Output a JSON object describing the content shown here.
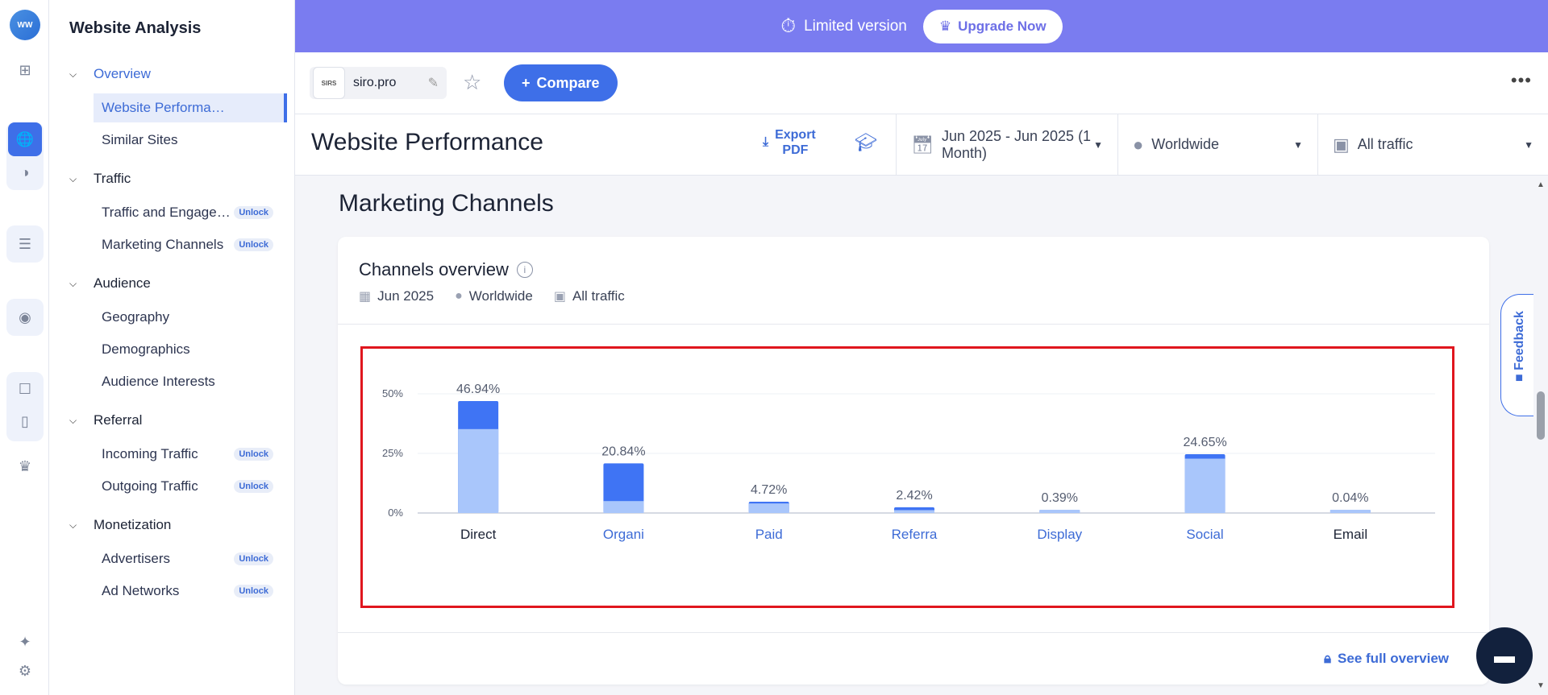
{
  "sidebar": {
    "title": "Website Analysis",
    "sections": [
      {
        "label": "Overview",
        "items": [
          {
            "label": "Website Performance",
            "locked": false,
            "selected": true
          },
          {
            "label": "Similar Sites",
            "locked": false
          }
        ]
      },
      {
        "label": "Traffic",
        "items": [
          {
            "label": "Traffic and Engagement",
            "locked": true
          },
          {
            "label": "Marketing Channels",
            "locked": true
          }
        ]
      },
      {
        "label": "Audience",
        "items": [
          {
            "label": "Geography"
          },
          {
            "label": "Demographics"
          },
          {
            "label": "Audience Interests"
          }
        ]
      },
      {
        "label": "Referral",
        "items": [
          {
            "label": "Incoming Traffic",
            "locked": true
          },
          {
            "label": "Outgoing Traffic",
            "locked": true
          }
        ]
      },
      {
        "label": "Monetization",
        "items": [
          {
            "label": "Advertisers",
            "locked": true
          },
          {
            "label": "Ad Networks",
            "locked": true
          }
        ]
      }
    ],
    "unlock_label": "Unlock"
  },
  "banner": {
    "text": "Limited version",
    "upgrade_label": "Upgrade Now"
  },
  "site": {
    "favicon_text": "SIRS",
    "name": "siro.pro"
  },
  "compare_label": "Compare",
  "page_title": "Website Performance",
  "export": {
    "line1": "Export",
    "line2": "PDF"
  },
  "filters": {
    "date": "Jun 2025 - Jun 2025 (1 Month)",
    "region": "Worldwide",
    "traffic": "All traffic"
  },
  "section_title": "Marketing Channels",
  "card": {
    "title": "Channels overview",
    "meta_date": "Jun 2025",
    "meta_region": "Worldwide",
    "meta_traffic": "All traffic",
    "see_full": "See full overview"
  },
  "feedback_label": "Feedback",
  "colors": {
    "accent": "#3e6fe8",
    "banner": "#7a7cf0",
    "bar_dark": "#3f74f4",
    "bar_light": "#a9c6fb",
    "highlight": "#e0161e"
  },
  "chart_data": {
    "type": "bar",
    "categories": [
      "Direct",
      "Organic",
      "Paid",
      "Referrals",
      "Display",
      "Social",
      "Email"
    ],
    "category_labels_shown": [
      "Direct",
      "Organi",
      "Paid",
      "Referra",
      "Display",
      "Social",
      "Email"
    ],
    "values": [
      46.94,
      20.84,
      4.72,
      2.42,
      0.39,
      24.65,
      0.04
    ],
    "value_labels": [
      "46.94%",
      "20.84%",
      "4.72%",
      "2.42%",
      "0.39%",
      "24.65%",
      "0.04%"
    ],
    "light_portion": [
      35.2,
      5.0,
      4.0,
      1.2,
      0.39,
      22.8,
      0.04
    ],
    "category_colors": [
      "#1c2335",
      "#3d6bd6",
      "#3d6bd6",
      "#3d6bd6",
      "#3d6bd6",
      "#3d6bd6",
      "#1c2335"
    ],
    "ylim": [
      0,
      50
    ],
    "yticks": [
      0,
      25,
      50
    ],
    "ytick_labels": [
      "0%",
      "25%",
      "50%"
    ]
  }
}
